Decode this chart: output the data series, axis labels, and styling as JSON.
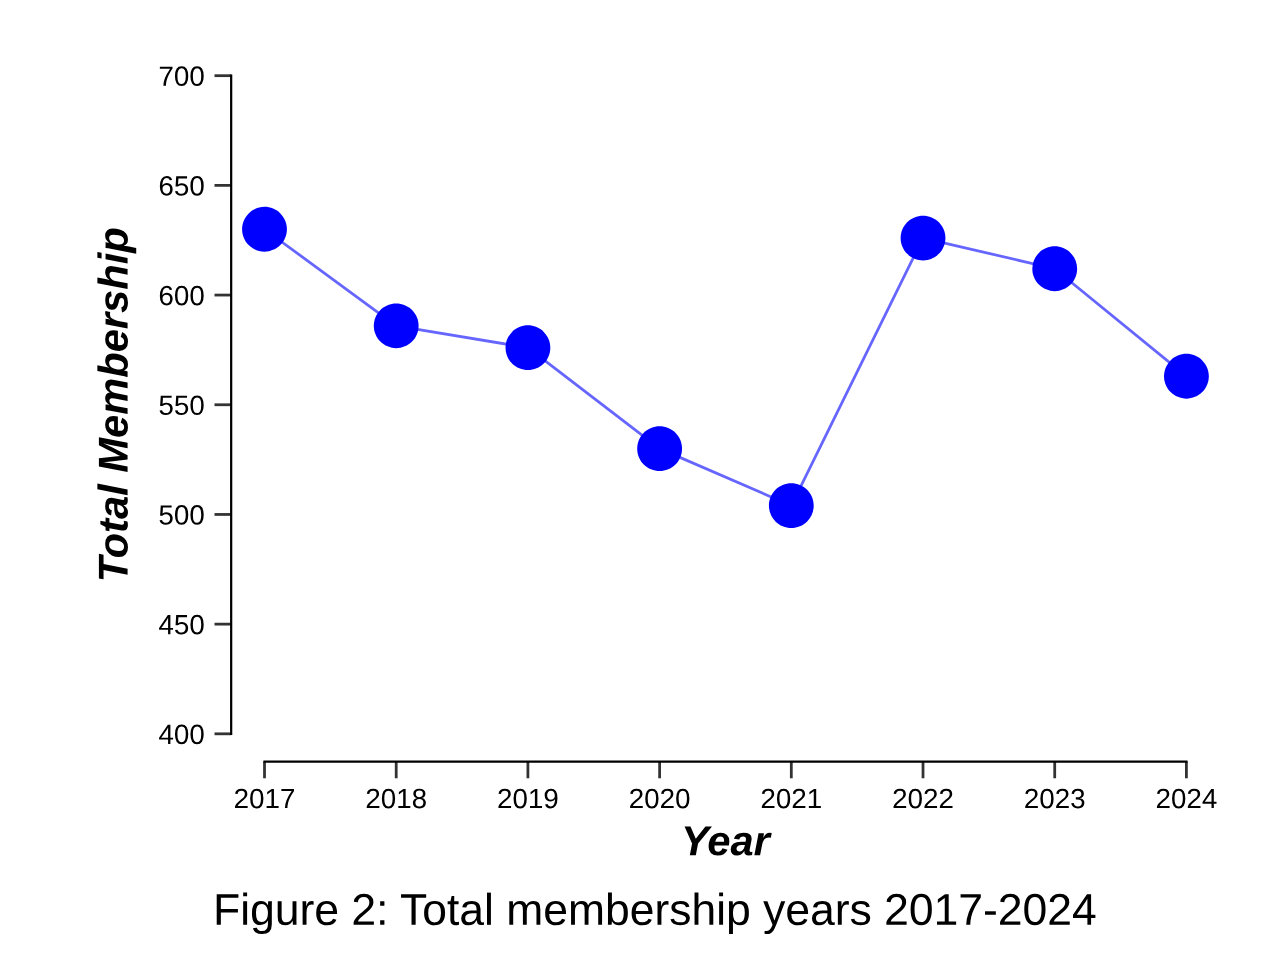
{
  "chart_data": {
    "type": "line",
    "xlabel": "Year",
    "ylabel": "Total Membership",
    "x": [
      2017,
      2018,
      2019,
      2020,
      2021,
      2022,
      2023,
      2024
    ],
    "series": [
      {
        "color": "#0000ff",
        "values": [
          630,
          586,
          576,
          530,
          504,
          626,
          612,
          563
        ]
      }
    ],
    "xlim": [
      2017,
      2024
    ],
    "xticks": [
      2017,
      2018,
      2019,
      2020,
      2021,
      2022,
      2023,
      2024
    ],
    "ylim": [
      400,
      700
    ],
    "yticks": [
      400,
      450,
      500,
      550,
      600,
      650,
      700
    ],
    "marker": "circle",
    "line_style": "solid",
    "grid": false,
    "legend": false,
    "annotations": [
      "Figure 2: Total membership years 2017-2024"
    ]
  }
}
